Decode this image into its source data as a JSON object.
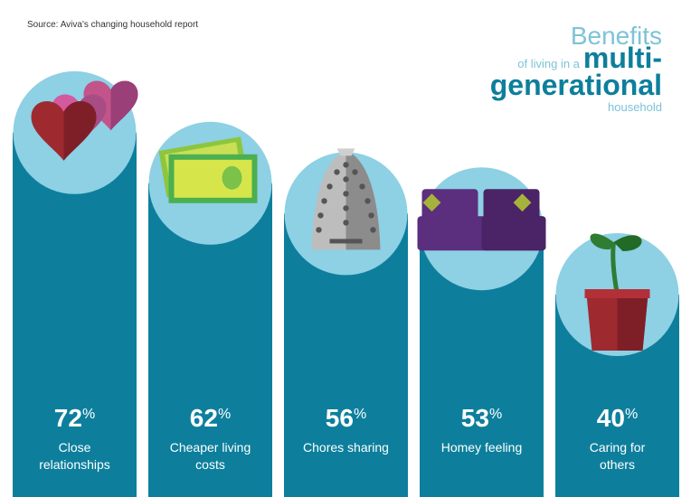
{
  "source": "Source: Aviva's changing household report",
  "title": {
    "word1": "Benefits",
    "word2": "of living in a",
    "word3": "multi-",
    "word4": "generational",
    "word5": "household"
  },
  "colors": {
    "bar": "#0d7f9c",
    "circle": "#8ed0e4",
    "text": "#ffffff"
  },
  "chart_data": {
    "type": "bar",
    "categories": [
      "Close relationships",
      "Cheaper living costs",
      "Chores sharing",
      "Homey feeling",
      "Caring for others"
    ],
    "label_lines": [
      [
        "Close",
        "relationships"
      ],
      [
        "Cheaper living",
        "costs"
      ],
      [
        "Chores sharing"
      ],
      [
        "Homey feeling"
      ],
      [
        "Caring for",
        "others"
      ]
    ],
    "values": [
      72,
      62,
      56,
      53,
      40
    ],
    "unit": "%",
    "icons": [
      "hearts-icon",
      "money-icon",
      "iron-icon",
      "sofa-icon",
      "plant-pot-icon"
    ],
    "ylim": [
      0,
      100
    ]
  }
}
